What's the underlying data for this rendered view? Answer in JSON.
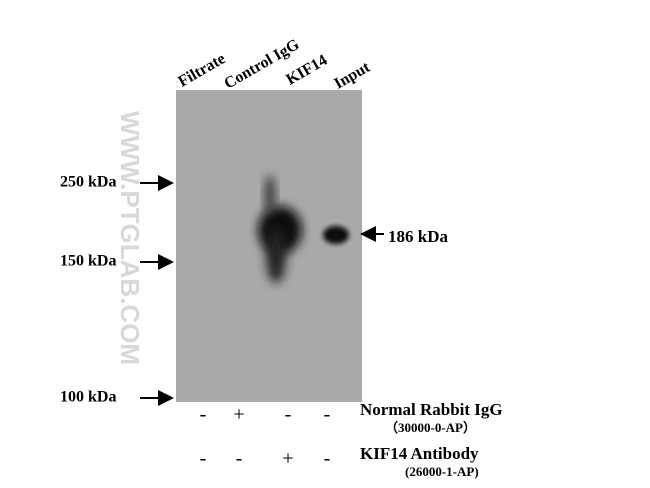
{
  "lanes": [
    "Filtrate",
    "Control IgG",
    "KIF14",
    "Input"
  ],
  "markers": [
    "250 kDa",
    "150 kDa",
    "100 kDa"
  ],
  "target": "186 kDa",
  "watermark": "WWW.PTGLAB.COM",
  "rows": [
    {
      "name": "Normal Rabbit IgG",
      "catalog": "（30000-0-AP）",
      "signs": [
        "-",
        "+",
        "-",
        "-"
      ]
    },
    {
      "name": "KIF14 Antibody",
      "catalog": "(26000-1-AP)",
      "signs": [
        "-",
        "-",
        "+",
        "-"
      ]
    }
  ]
}
